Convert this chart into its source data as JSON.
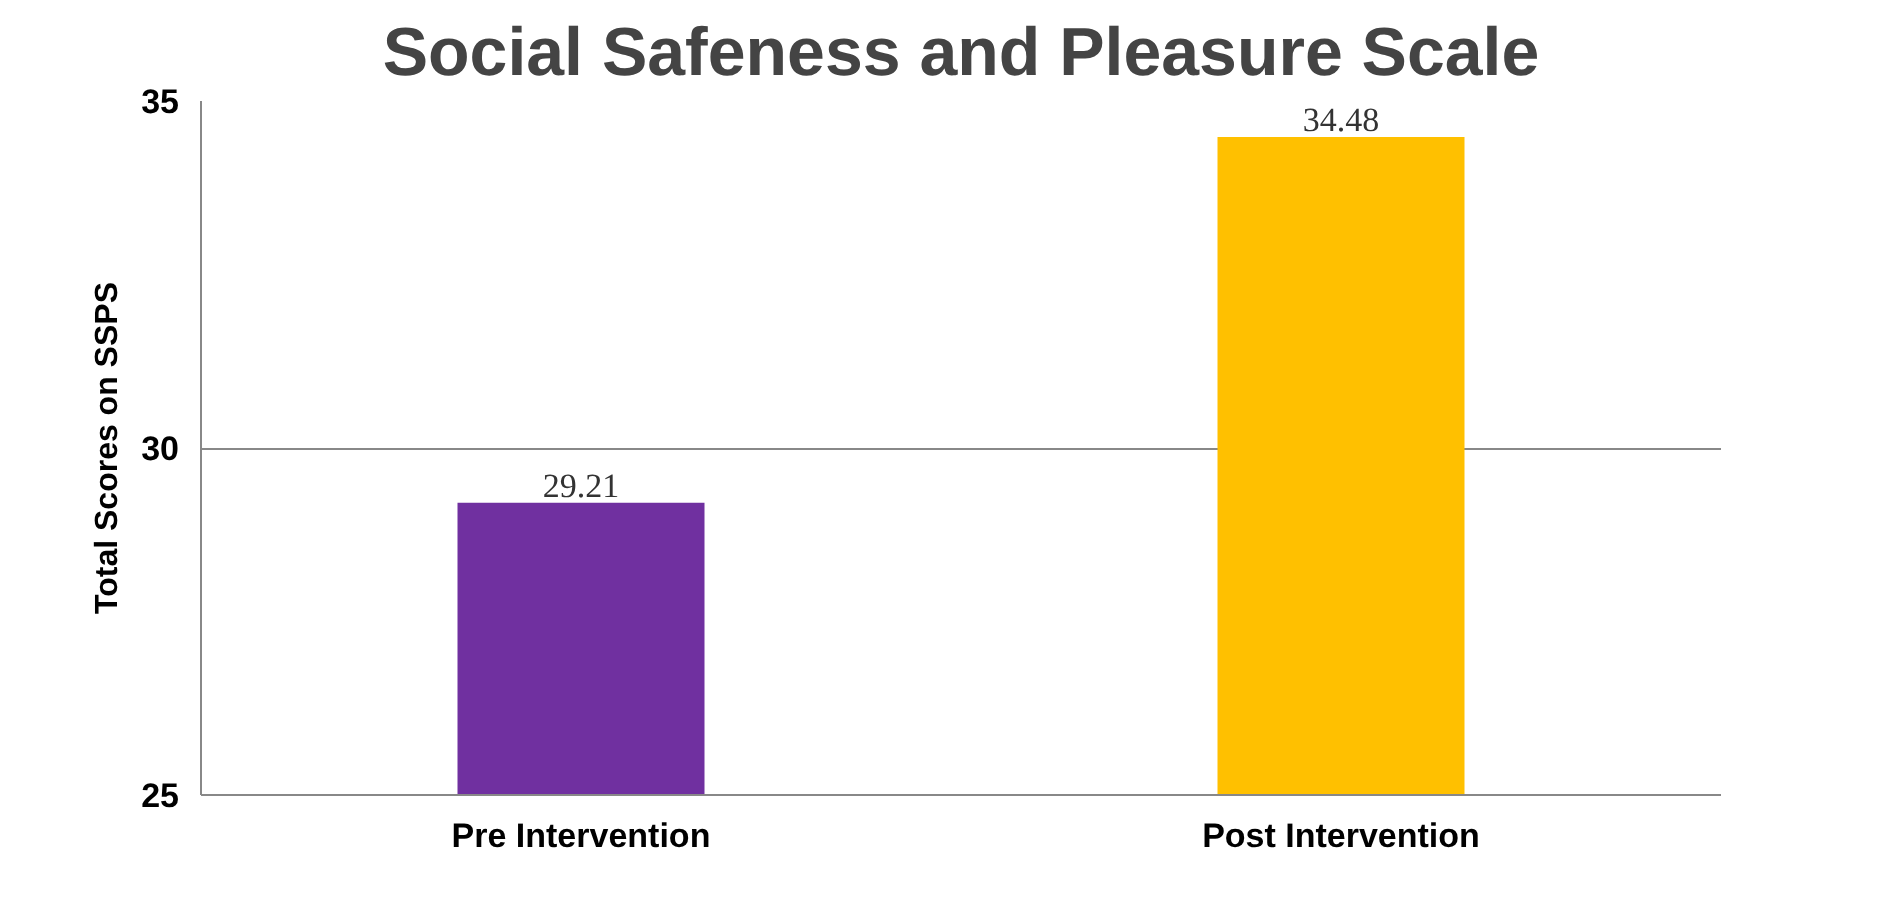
{
  "chart_data": {
    "type": "bar",
    "title": "Social Safeness and Pleasure Scale",
    "ylabel": "Total Scores on SSPS",
    "categories": [
      "Pre Intervention",
      "Post Intervention"
    ],
    "values": [
      29.21,
      34.48
    ],
    "colors": [
      "#7030a0",
      "#ffc000"
    ],
    "ylim": [
      25,
      35
    ],
    "yticks": [
      25,
      30,
      35
    ],
    "grid": "y",
    "data_labels": true
  }
}
